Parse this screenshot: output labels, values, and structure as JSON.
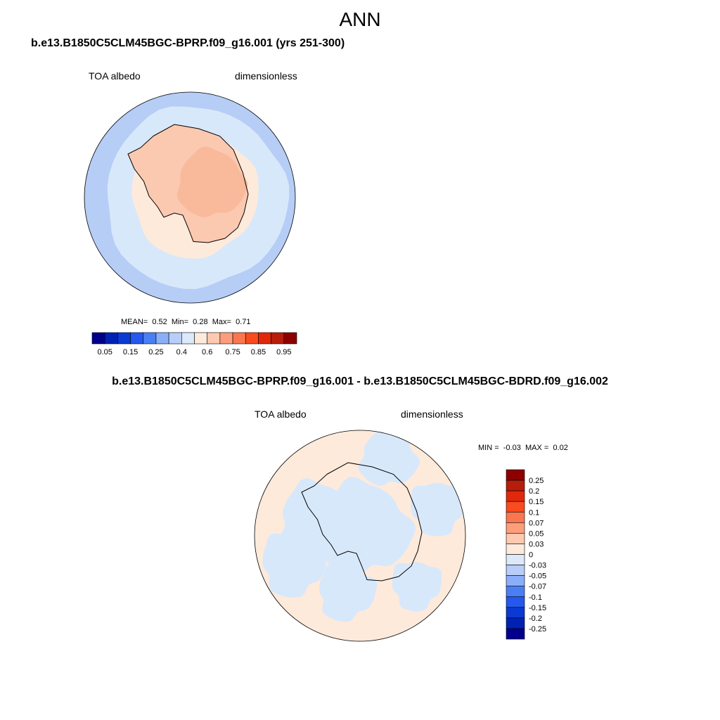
{
  "title": "ANN",
  "panel1": {
    "title": "b.e13.B1850C5CLM45BGC-BPRP.f09_g16.001 (yrs 251-300)",
    "left_label": "TOA albedo",
    "right_label": "dimensionless",
    "stats": {
      "mean_label": "MEAN=",
      "mean": "0.52",
      "min_label": "Min=",
      "min": "0.28",
      "max_label": "Max=",
      "max": "0.71"
    },
    "colorbar": {
      "ticks": [
        "0.05",
        "0.15",
        "0.25",
        "0.4",
        "0.6",
        "0.75",
        "0.85",
        "0.95"
      ],
      "colors": [
        "#00008c",
        "#0022b4",
        "#0a3ad2",
        "#2458ee",
        "#4a7ef4",
        "#8aaef8",
        "#b8cdf7",
        "#dbe9fb",
        "#feeadb",
        "#fdc9b0",
        "#fc9e7c",
        "#fa7650",
        "#f84b1e",
        "#e2280b",
        "#b81c0a",
        "#8c0000"
      ]
    }
  },
  "panel2": {
    "title": "b.e13.B1850C5CLM45BGC-BPRP.f09_g16.001 - b.e13.B1850C5CLM45BGC-BDRD.f09_g16.002",
    "left_label": "TOA albedo",
    "right_label": "dimensionless",
    "stats": {
      "min_label": "MIN =",
      "min": "-0.03",
      "max_label": "MAX =",
      "max": "0.02"
    },
    "colorbar": {
      "ticks": [
        "0.25",
        "0.2",
        "0.15",
        "0.1",
        "0.07",
        "0.05",
        "0.03",
        "0",
        "-0.03",
        "-0.05",
        "-0.07",
        "-0.1",
        "-0.15",
        "-0.2",
        "-0.25"
      ],
      "colors": [
        "#8c0000",
        "#b81c0a",
        "#e2280b",
        "#f84b1e",
        "#fa7650",
        "#fc9e7c",
        "#fdc9b0",
        "#feeadb",
        "#dbe9fb",
        "#b8cdf7",
        "#8aaef8",
        "#4a7ef4",
        "#2458ee",
        "#0a3ad2",
        "#0022b4",
        "#00008c"
      ]
    }
  },
  "colors": {
    "ocean_outer": "#b6cdf6",
    "ocean_mid": "#d8e8fb",
    "sea_ice": "#feeadb",
    "land": "#fbc9b0",
    "land_high": "#f9b596"
  }
}
